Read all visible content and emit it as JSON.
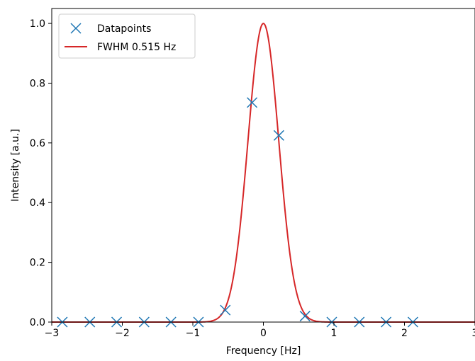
{
  "chart_data": {
    "type": "scatter",
    "xlabel": "Frequency [Hz]",
    "ylabel": "Intensity [a.u.]",
    "xlim": [
      -3,
      3
    ],
    "ylim": [
      0,
      1.05
    ],
    "xticks": [
      -3,
      -2,
      -1,
      0,
      1,
      2,
      3
    ],
    "xtick_labels": [
      "−3",
      "−2",
      "−1",
      "0",
      "1",
      "2",
      "3"
    ],
    "yticks": [
      0,
      0.2,
      0.4,
      0.6,
      0.8,
      1.0
    ],
    "ytick_labels": [
      "0.0",
      "0.2",
      "0.4",
      "0.6",
      "0.8",
      "1.0"
    ],
    "grid": false,
    "legend_position": "top-left",
    "series": [
      {
        "name": "Datapoints",
        "type": "scatter",
        "marker": "x",
        "color": "#1f77b4",
        "x": [
          -2.85,
          -2.46,
          -2.08,
          -1.69,
          -1.31,
          -0.92,
          -0.54,
          -0.16,
          0.22,
          0.59,
          0.97,
          1.36,
          1.74,
          2.12
        ],
        "y": [
          0.0,
          0.0,
          0.0,
          0.0,
          0.0,
          0.0,
          0.04,
          0.735,
          0.625,
          0.02,
          0.0,
          0.0,
          0.0,
          0.0
        ]
      },
      {
        "name": "FWHM 0.515 Hz",
        "type": "line",
        "color": "#d62728",
        "function": "gaussian",
        "amplitude": 1.0,
        "center": 0.0,
        "fwhm": 0.515
      }
    ]
  }
}
